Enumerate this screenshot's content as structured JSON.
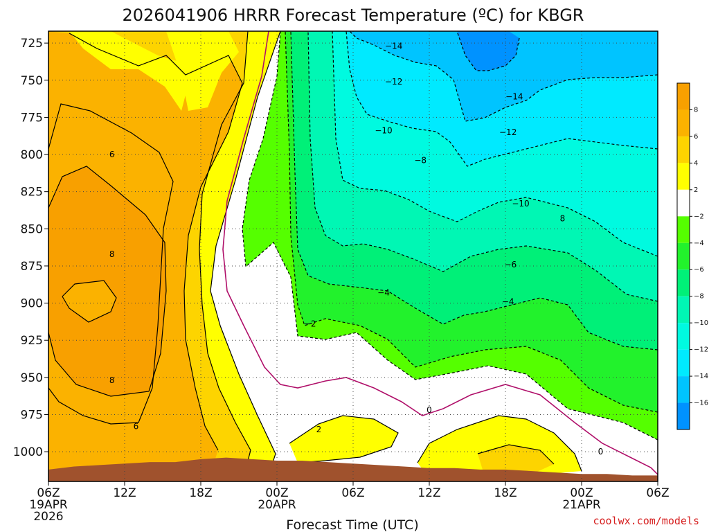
{
  "chart_data": {
    "type": "heatmap",
    "title": "2026041906 HRRR Forecast Temperature (ºC) for KBGR",
    "xlabel": "Forecast Time (UTC)",
    "ylabel": "",
    "y_axis": {
      "unit": "hPa",
      "inverted": true,
      "range": [
        717,
        1020
      ],
      "ticks": [
        725,
        750,
        775,
        800,
        825,
        850,
        875,
        900,
        925,
        950,
        975,
        1000
      ]
    },
    "x_axis": {
      "range_hours": [
        0,
        48
      ],
      "ticks": [
        {
          "hour": 0,
          "lines": [
            "06Z",
            "19APR",
            "2026"
          ]
        },
        {
          "hour": 6,
          "lines": [
            "12Z"
          ]
        },
        {
          "hour": 12,
          "lines": [
            "18Z"
          ]
        },
        {
          "hour": 18,
          "lines": [
            "00Z",
            "20APR"
          ]
        },
        {
          "hour": 24,
          "lines": [
            "06Z"
          ]
        },
        {
          "hour": 30,
          "lines": [
            "12Z"
          ]
        },
        {
          "hour": 36,
          "lines": [
            "18Z"
          ]
        },
        {
          "hour": 42,
          "lines": [
            "00Z",
            "21APR"
          ]
        },
        {
          "hour": 48,
          "lines": [
            "06Z"
          ]
        }
      ]
    },
    "grid": true,
    "colorbar": {
      "position": "right",
      "bands": [
        {
          "from": 8,
          "to": 10,
          "color": "#f8a000"
        },
        {
          "from": 6,
          "to": 8,
          "color": "#fbb200"
        },
        {
          "from": 4,
          "to": 6,
          "color": "#fdd400"
        },
        {
          "from": 2,
          "to": 4,
          "color": "#ffff00"
        },
        {
          "from": -2,
          "to": 2,
          "color": "#ffffff"
        },
        {
          "from": -4,
          "to": -2,
          "color": "#55ff00"
        },
        {
          "from": -6,
          "to": -4,
          "color": "#22f22c"
        },
        {
          "from": -8,
          "to": -6,
          "color": "#00f078"
        },
        {
          "from": -10,
          "to": -8,
          "color": "#00f7b4"
        },
        {
          "from": -12,
          "to": -10,
          "color": "#00fae0"
        },
        {
          "from": -14,
          "to": -12,
          "color": "#00eaff"
        },
        {
          "from": -16,
          "to": -14,
          "color": "#00c4ff"
        },
        {
          "from": -18,
          "to": -16,
          "color": "#0092ff"
        }
      ],
      "labels": [
        "8",
        "6",
        "4",
        "2",
        "−2",
        "−4",
        "−6",
        "−8",
        "−10",
        "−12",
        "−14",
        "−16"
      ]
    },
    "contour_labels": [
      {
        "text": "−14",
        "hour": 27.2,
        "hpa": 727
      },
      {
        "text": "−12",
        "hour": 27.2,
        "hpa": 751
      },
      {
        "text": "−14",
        "hour": 36.7,
        "hpa": 761
      },
      {
        "text": "−10",
        "hour": 26.4,
        "hpa": 784
      },
      {
        "text": "−12",
        "hour": 36.2,
        "hpa": 785
      },
      {
        "text": "−8",
        "hour": 29.3,
        "hpa": 804
      },
      {
        "text": "−10",
        "hour": 37.2,
        "hpa": 833
      },
      {
        "text": "8",
        "hour": 40.5,
        "hpa": 843
      },
      {
        "text": "−6",
        "hour": 36.4,
        "hpa": 874
      },
      {
        "text": "−4",
        "hour": 26.4,
        "hpa": 893
      },
      {
        "text": "−4",
        "hour": 36.2,
        "hpa": 899
      },
      {
        "text": "−2",
        "hour": 20.6,
        "hpa": 914
      },
      {
        "text": "0",
        "hour": 30.0,
        "hpa": 972
      },
      {
        "text": "2",
        "hour": 21.3,
        "hpa": 985
      },
      {
        "text": "0",
        "hour": 43.5,
        "hpa": 1000
      },
      {
        "text": "6",
        "hour": 5.0,
        "hpa": 800
      },
      {
        "text": "8",
        "hour": 5.0,
        "hpa": 867
      },
      {
        "text": "8",
        "hour": 5.0,
        "hpa": 952
      },
      {
        "text": "6",
        "hour": 6.9,
        "hpa": 983
      }
    ],
    "surface_pressure_hpa": [
      [
        0,
        1012
      ],
      [
        2,
        1010
      ],
      [
        4,
        1009
      ],
      [
        6,
        1008
      ],
      [
        8,
        1007
      ],
      [
        10,
        1007
      ],
      [
        12,
        1005
      ],
      [
        14,
        1004
      ],
      [
        16,
        1005
      ],
      [
        18,
        1006
      ],
      [
        20,
        1006
      ],
      [
        22,
        1007
      ],
      [
        24,
        1008
      ],
      [
        26,
        1009
      ],
      [
        28,
        1010
      ],
      [
        30,
        1011
      ],
      [
        32,
        1011
      ],
      [
        34,
        1012
      ],
      [
        36,
        1012
      ],
      [
        38,
        1013
      ],
      [
        40,
        1014
      ],
      [
        42,
        1015
      ],
      [
        44,
        1015
      ],
      [
        46,
        1016
      ],
      [
        48,
        1016
      ]
    ]
  },
  "credit": "coolwx.com/models"
}
